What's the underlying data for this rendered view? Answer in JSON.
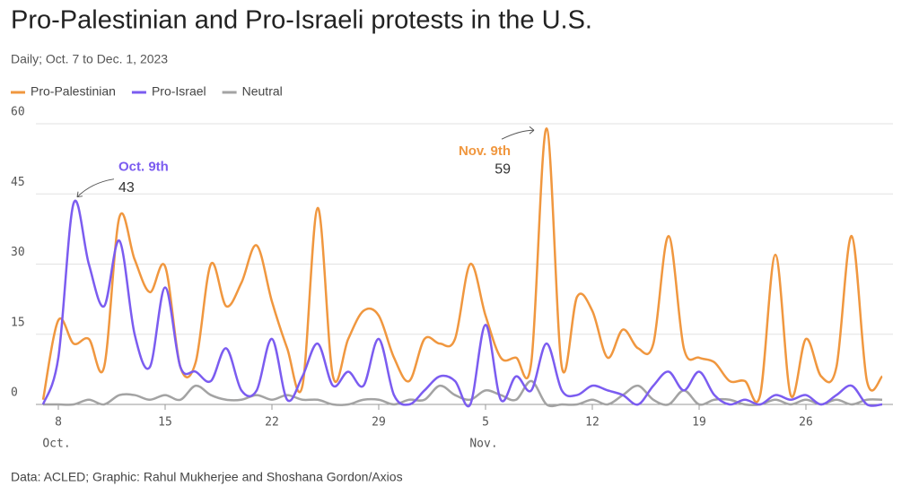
{
  "chart_data": {
    "type": "line",
    "title": "Pro-Palestinian and Pro-Israeli protests in the U.S.",
    "subtitle": "Daily; Oct. 7 to Dec. 1, 2023",
    "source": "Data: ACLED; Graphic: Rahul Mukherjee and Shoshana Gordon/Axios",
    "x": [
      "2023-10-07",
      "2023-10-08",
      "2023-10-09",
      "2023-10-10",
      "2023-10-11",
      "2023-10-12",
      "2023-10-13",
      "2023-10-14",
      "2023-10-15",
      "2023-10-16",
      "2023-10-17",
      "2023-10-18",
      "2023-10-19",
      "2023-10-20",
      "2023-10-21",
      "2023-10-22",
      "2023-10-23",
      "2023-10-24",
      "2023-10-25",
      "2023-10-26",
      "2023-10-27",
      "2023-10-28",
      "2023-10-29",
      "2023-10-30",
      "2023-10-31",
      "2023-11-01",
      "2023-11-02",
      "2023-11-03",
      "2023-11-04",
      "2023-11-05",
      "2023-11-06",
      "2023-11-07",
      "2023-11-08",
      "2023-11-09",
      "2023-11-10",
      "2023-11-11",
      "2023-11-12",
      "2023-11-13",
      "2023-11-14",
      "2023-11-15",
      "2023-11-16",
      "2023-11-17",
      "2023-11-18",
      "2023-11-19",
      "2023-11-20",
      "2023-11-21",
      "2023-11-22",
      "2023-11-23",
      "2023-11-24",
      "2023-11-25",
      "2023-11-26",
      "2023-11-27",
      "2023-11-28",
      "2023-11-29",
      "2023-11-30",
      "2023-12-01"
    ],
    "series": [
      {
        "name": "Pro-Palestinian",
        "color": "#f0973f",
        "values": [
          1,
          18,
          13,
          14,
          8,
          40,
          31,
          24,
          29.5,
          8,
          9,
          30,
          21,
          26,
          34,
          22,
          12,
          4,
          42,
          6,
          14,
          20,
          19,
          10,
          5,
          14,
          13,
          14,
          30,
          19,
          10,
          10,
          9,
          59,
          8,
          23,
          20,
          10,
          16,
          12,
          13,
          36,
          12,
          10,
          9,
          5,
          5,
          2,
          32,
          2,
          14,
          6,
          8,
          36,
          5,
          6
        ]
      },
      {
        "name": "Pro-Israel",
        "color": "#7b5cf0",
        "values": [
          0,
          10,
          43,
          30,
          21,
          35,
          15,
          8,
          25,
          8,
          7,
          5,
          12,
          3,
          3,
          14,
          1,
          6,
          13,
          4,
          7,
          4,
          14,
          2,
          0,
          3,
          6,
          5,
          0,
          17,
          1,
          6,
          3,
          13,
          3,
          2,
          4,
          3,
          2,
          0,
          4,
          7,
          3,
          7,
          2,
          0,
          1,
          0,
          2,
          1,
          2,
          0,
          2,
          4,
          0,
          0
        ]
      },
      {
        "name": "Neutral",
        "color": "#a3a3a3",
        "values": [
          0,
          0,
          0,
          1,
          0,
          2,
          2,
          1,
          2,
          1,
          4,
          2,
          1,
          1,
          2,
          1,
          2,
          1,
          1,
          0,
          0,
          1,
          1,
          0,
          1,
          1,
          4,
          2,
          1,
          3,
          2,
          1,
          5,
          0,
          0,
          0,
          1,
          0,
          2,
          4,
          1,
          0,
          3,
          0,
          1,
          1,
          0,
          0,
          1,
          0,
          1,
          0,
          1,
          0,
          1,
          1
        ]
      }
    ],
    "xlim": [
      "2023-10-07",
      "2023-12-01"
    ],
    "xticks": [
      {
        "value": "2023-10-08",
        "label": "8"
      },
      {
        "value": "2023-10-15",
        "label": "15"
      },
      {
        "value": "2023-10-22",
        "label": "22"
      },
      {
        "value": "2023-10-29",
        "label": "29"
      },
      {
        "value": "2023-11-05",
        "label": "5"
      },
      {
        "value": "2023-11-12",
        "label": "12"
      },
      {
        "value": "2023-11-19",
        "label": "19"
      },
      {
        "value": "2023-11-26",
        "label": "26"
      }
    ],
    "month_labels": [
      {
        "value": "2023-10-08",
        "label": "Oct."
      },
      {
        "value": "2023-11-05",
        "label": "Nov."
      }
    ],
    "ylim": [
      0,
      60
    ],
    "yticks": [
      0,
      15,
      30,
      45,
      60
    ],
    "grid": true,
    "annotations": [
      {
        "x": "2023-10-09",
        "label": "Oct. 9th",
        "value": 43,
        "series": 1
      },
      {
        "x": "2023-11-09",
        "label": "Nov. 9th",
        "value": 59,
        "series": 0
      }
    ]
  }
}
